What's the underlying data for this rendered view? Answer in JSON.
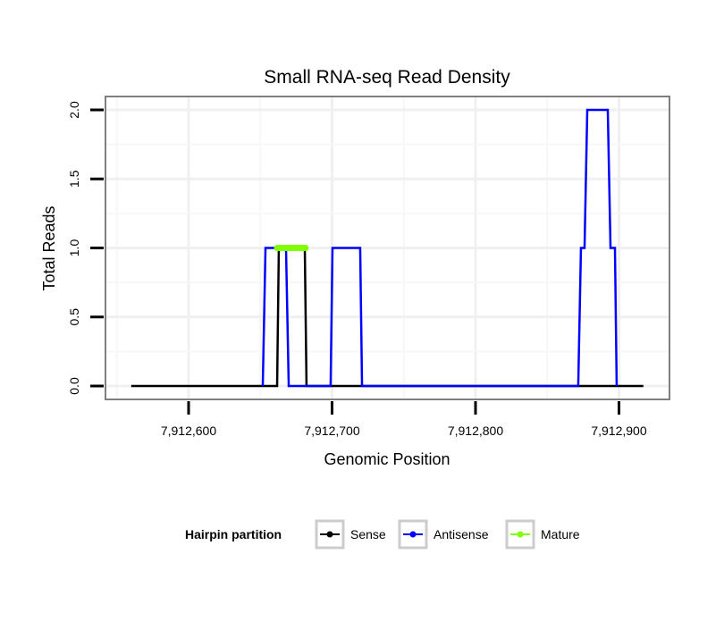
{
  "chart_data": {
    "type": "line",
    "title": "Small RNA-seq Read Density",
    "xlabel": "Genomic Position",
    "ylabel": "Total Reads",
    "xlim": [
      7912545,
      7912938
    ],
    "ylim": [
      -0.1,
      2.1
    ],
    "xticks": [
      7912600,
      7912700,
      7912800,
      7912900
    ],
    "xtick_labels": [
      "7,912,600",
      "7,912,700",
      "7,912,800",
      "7,912,900"
    ],
    "yticks": [
      0,
      0.5,
      1,
      1.5,
      2
    ],
    "ytick_labels": [
      "0.0",
      "0.5",
      "1.0",
      "1.5",
      "2.0"
    ],
    "grid": true,
    "legend": {
      "title": "Hairpin partition",
      "placement": "bottom"
    },
    "series": [
      {
        "name": "Sense",
        "color": "#000000",
        "x": [
          7912560,
          7912661.7,
          7912662.9,
          7912681,
          7912682.2,
          7912917
        ],
        "y": [
          0,
          0,
          1,
          1,
          0,
          0
        ]
      },
      {
        "name": "Antisense",
        "color": "#0000ff",
        "x": [
          7912651.7,
          7912653.6,
          7912667.9,
          7912669.8,
          7912699,
          7912700.3,
          7912719.6,
          7912720.9,
          7912871.6,
          7912873.5,
          7912876,
          7912877.9,
          7912892.2,
          7912894.1,
          7912897.2,
          7912898.4
        ],
        "y": [
          0,
          1,
          1,
          0,
          0,
          1,
          1,
          0,
          0,
          1,
          1,
          2,
          2,
          1,
          1,
          0
        ]
      },
      {
        "name": "Mature",
        "color": "#7fff00",
        "x": [
          7912661.7,
          7912681.5
        ],
        "y": [
          1,
          1
        ]
      }
    ]
  }
}
